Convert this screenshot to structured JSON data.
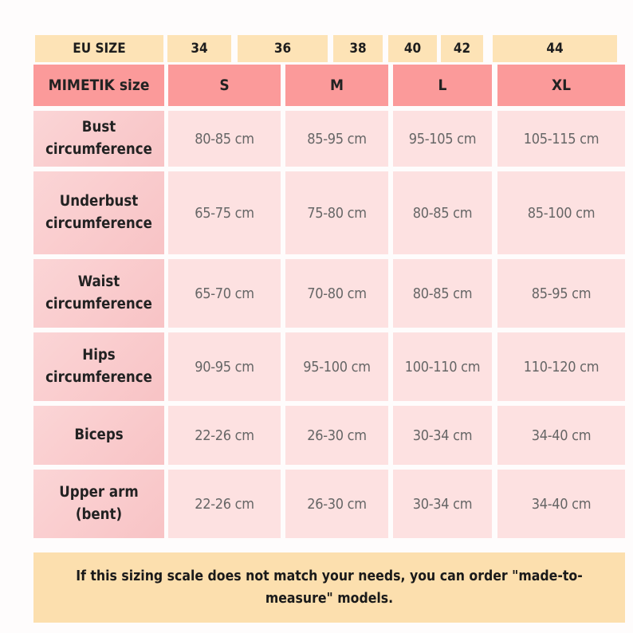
{
  "eu_row": {
    "label": "EU SIZE",
    "sizes": [
      "34",
      "36",
      "38",
      "40",
      "42",
      "44"
    ]
  },
  "header": {
    "label": "MIMETIK size",
    "sizes": [
      "S",
      "M",
      "L",
      "XL"
    ]
  },
  "rows": [
    {
      "label": "Bust circumference",
      "values": [
        "80-85 cm",
        "85-95 cm",
        "95-105 cm",
        "105-115 cm"
      ]
    },
    {
      "label": "Underbust circumference",
      "values": [
        "65-75 cm",
        "75-80 cm",
        "80-85 cm",
        "85-100 cm"
      ]
    },
    {
      "label": "Waist circumference",
      "values": [
        "65-70 cm",
        "70-80 cm",
        "80-85 cm",
        "85-95 cm"
      ]
    },
    {
      "label": "Hips circumference",
      "values": [
        "90-95 cm",
        "95-100 cm",
        "100-110 cm",
        "110-120 cm"
      ]
    },
    {
      "label": "Biceps",
      "values": [
        "22-26 cm",
        "26-30 cm",
        "30-34 cm",
        "34-40 cm"
      ]
    },
    {
      "label": "Upper arm (bent)",
      "values": [
        "22-26 cm",
        "26-30 cm",
        "30-34 cm",
        "34-40 cm"
      ]
    }
  ],
  "footer": {
    "note": "If this sizing scale does not match your needs, you can order \"made-to-measure\" models."
  },
  "colors": {
    "eu_bg": "#fde3b6",
    "header_bg": "#fb9a9a",
    "label_bg": "#f8c3c5",
    "cell_bg": "#fde1e1",
    "footer_bg": "#fcdfae"
  }
}
